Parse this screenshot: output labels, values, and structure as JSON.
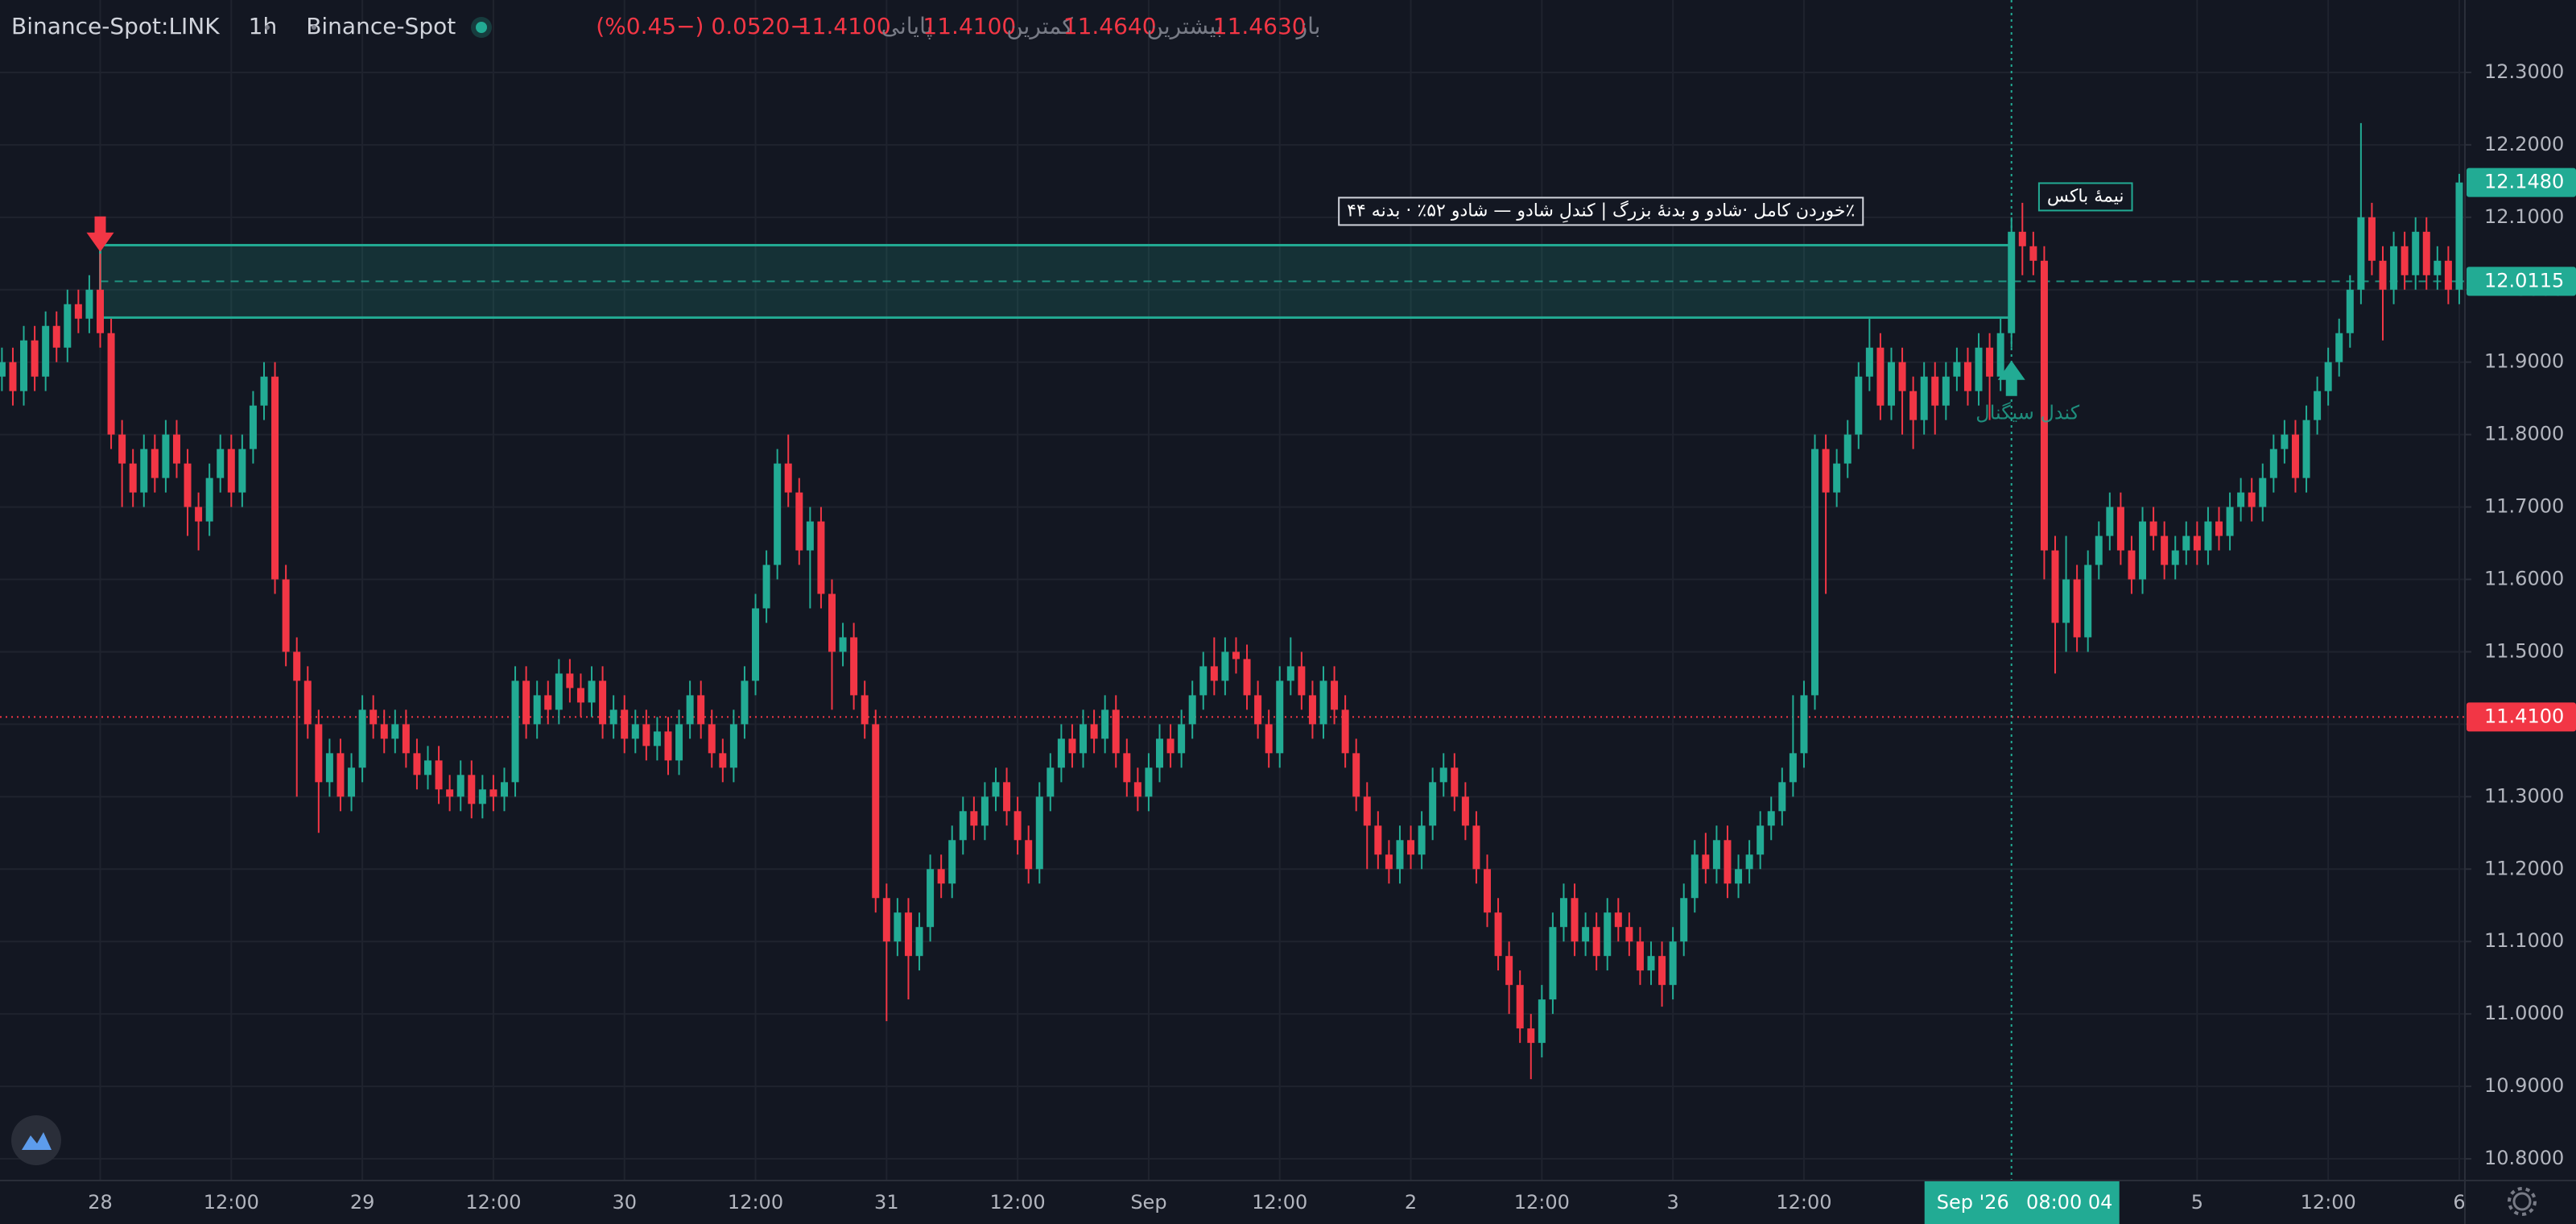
{
  "chart_data": {
    "type": "candlestick",
    "header": {
      "symbol": "Binance-Spot:LINK",
      "interval": "1h",
      "exchange": "Binance-Spot",
      "ohlc": [
        {
          "label": "باز",
          "value": "11.4630"
        },
        {
          "label": "بیشترین",
          "value": "11.4640"
        },
        {
          "label": "کمترین",
          "value": "11.4100"
        },
        {
          "label": "پایانی",
          "value": "11.4100"
        }
      ],
      "change": "−0.0520 (−0.45%)"
    },
    "up_color": "#22ab94",
    "down_color": "#f23645",
    "ylim": [
      10.77,
      12.4
    ],
    "yticks": [
      {
        "value": 12.3,
        "label": "12.3000"
      },
      {
        "value": 12.2,
        "label": "12.2000"
      },
      {
        "value": 12.1,
        "label": "12.1000"
      },
      {
        "value": 12.0,
        "label": "12.0000"
      },
      {
        "value": 11.9,
        "label": "11.9000"
      },
      {
        "value": 11.8,
        "label": "11.8000"
      },
      {
        "value": 11.7,
        "label": "11.7000"
      },
      {
        "value": 11.6,
        "label": "11.6000"
      },
      {
        "value": 11.5,
        "label": "11.5000"
      },
      {
        "value": 11.4,
        "label": "11.4000"
      },
      {
        "value": 11.3,
        "label": "11.3000"
      },
      {
        "value": 11.2,
        "label": "11.2000"
      },
      {
        "value": 11.1,
        "label": "11.1000"
      },
      {
        "value": 11.0,
        "label": "11.0000"
      },
      {
        "value": 10.9,
        "label": "10.9000"
      },
      {
        "value": 10.8,
        "label": "10.8000"
      }
    ],
    "grid": true,
    "categories": [
      null,
      null,
      null,
      null,
      null,
      null,
      null,
      null,
      null,
      "28",
      null,
      null,
      null,
      null,
      null,
      null,
      null,
      null,
      null,
      null,
      null,
      "12:00",
      null,
      null,
      null,
      null,
      null,
      null,
      null,
      null,
      null,
      null,
      null,
      "29",
      null,
      null,
      null,
      null,
      null,
      null,
      null,
      null,
      null,
      null,
      null,
      "12:00",
      null,
      null,
      null,
      null,
      null,
      null,
      null,
      null,
      null,
      null,
      null,
      "30",
      null,
      null,
      null,
      null,
      null,
      null,
      null,
      null,
      null,
      null,
      null,
      "12:00",
      null,
      null,
      null,
      null,
      null,
      null,
      null,
      null,
      null,
      null,
      null,
      "31",
      null,
      null,
      null,
      null,
      null,
      null,
      null,
      null,
      null,
      null,
      null,
      "12:00",
      null,
      null,
      null,
      null,
      null,
      null,
      null,
      null,
      null,
      null,
      null,
      "Sep",
      null,
      null,
      null,
      null,
      null,
      null,
      null,
      null,
      null,
      null,
      null,
      "12:00",
      null,
      null,
      null,
      null,
      null,
      null,
      null,
      null,
      null,
      null,
      null,
      "2",
      null,
      null,
      null,
      null,
      null,
      null,
      null,
      null,
      null,
      null,
      null,
      "12:00",
      null,
      null,
      null,
      null,
      null,
      null,
      null,
      null,
      null,
      null,
      null,
      "3",
      null,
      null,
      null,
      null,
      null,
      null,
      null,
      null,
      null,
      null,
      null,
      "12:00",
      null,
      null,
      null,
      null,
      null,
      null,
      null,
      null,
      null,
      null,
      null,
      null,
      null,
      null,
      null,
      null,
      null,
      null,
      null,
      null,
      null,
      null,
      null,
      null,
      null,
      null,
      null,
      null,
      null,
      null,
      null,
      null,
      null,
      null,
      null,
      "5",
      null,
      null,
      null,
      null,
      null,
      null,
      null,
      null,
      null,
      null,
      null,
      "12:00",
      null,
      null,
      null,
      null,
      null,
      null,
      null,
      null,
      null,
      null,
      null,
      "6"
    ],
    "open": [
      11.88,
      11.9,
      11.86,
      11.93,
      11.88,
      11.95,
      11.92,
      11.98,
      11.96,
      12.0,
      11.94,
      11.8,
      11.76,
      11.72,
      11.78,
      11.74,
      11.8,
      11.76,
      11.7,
      11.68,
      11.74,
      11.78,
      11.72,
      11.78,
      11.84,
      11.88,
      11.6,
      11.5,
      11.46,
      11.4,
      11.32,
      11.36,
      11.3,
      11.34,
      11.42,
      11.4,
      11.38,
      11.4,
      11.36,
      11.33,
      11.35,
      11.31,
      11.3,
      11.33,
      11.29,
      11.31,
      11.3,
      11.32,
      11.46,
      11.4,
      11.44,
      11.42,
      11.47,
      11.45,
      11.43,
      11.46,
      11.4,
      11.42,
      11.38,
      11.4,
      11.37,
      11.39,
      11.35,
      11.4,
      11.44,
      11.4,
      11.36,
      11.34,
      11.4,
      11.46,
      11.56,
      11.62,
      11.76,
      11.72,
      11.64,
      11.68,
      11.58,
      11.5,
      11.52,
      11.44,
      11.4,
      11.16,
      11.1,
      11.14,
      11.08,
      11.12,
      11.2,
      11.18,
      11.24,
      11.28,
      11.26,
      11.3,
      11.32,
      11.28,
      11.24,
      11.2,
      11.3,
      11.34,
      11.38,
      11.36,
      11.4,
      11.38,
      11.42,
      11.36,
      11.32,
      11.3,
      11.34,
      11.38,
      11.36,
      11.4,
      11.44,
      11.48,
      11.46,
      11.5,
      11.49,
      11.44,
      11.4,
      11.36,
      11.46,
      11.48,
      11.44,
      11.4,
      11.46,
      11.42,
      11.36,
      11.3,
      11.26,
      11.22,
      11.2,
      11.24,
      11.22,
      11.26,
      11.32,
      11.34,
      11.3,
      11.26,
      11.2,
      11.14,
      11.08,
      11.04,
      10.98,
      10.96,
      11.02,
      11.12,
      11.16,
      11.1,
      11.12,
      11.08,
      11.14,
      11.12,
      11.1,
      11.06,
      11.08,
      11.04,
      11.1,
      11.16,
      11.22,
      11.2,
      11.24,
      11.18,
      11.2,
      11.22,
      11.26,
      11.28,
      11.32,
      11.36,
      11.44,
      11.78,
      11.72,
      11.76,
      11.8,
      11.88,
      11.92,
      11.84,
      11.9,
      11.86,
      11.82,
      11.88,
      11.84,
      11.88,
      11.9,
      11.86,
      11.92,
      11.88,
      11.94,
      12.08,
      12.06,
      12.04,
      11.64,
      11.54,
      11.6,
      11.52,
      11.62,
      11.66,
      11.7,
      11.64,
      11.6,
      11.68,
      11.66,
      11.62,
      11.64,
      11.66,
      11.64,
      11.68,
      11.66,
      11.7,
      11.72,
      11.7,
      11.74,
      11.78,
      11.8,
      11.74,
      11.82,
      11.86,
      11.9,
      11.94,
      12.0,
      12.1,
      12.04,
      12.0,
      12.06,
      12.02,
      12.08,
      12.02,
      12.04,
      12.0
    ],
    "high": [
      11.92,
      11.92,
      11.95,
      11.95,
      11.97,
      11.97,
      12.0,
      12.0,
      12.02,
      12.05,
      11.96,
      11.82,
      11.78,
      11.8,
      11.8,
      11.82,
      11.82,
      11.78,
      11.72,
      11.76,
      11.8,
      11.8,
      11.8,
      11.86,
      11.9,
      11.9,
      11.62,
      11.52,
      11.48,
      11.42,
      11.38,
      11.38,
      11.36,
      11.44,
      11.44,
      11.42,
      11.42,
      11.42,
      11.38,
      11.37,
      11.37,
      11.33,
      11.35,
      11.35,
      11.33,
      11.33,
      11.34,
      11.48,
      11.48,
      11.46,
      11.46,
      11.49,
      11.49,
      11.47,
      11.48,
      11.48,
      11.44,
      11.44,
      11.42,
      11.42,
      11.41,
      11.41,
      11.42,
      11.46,
      11.46,
      11.42,
      11.38,
      11.42,
      11.48,
      11.58,
      11.64,
      11.78,
      11.8,
      11.74,
      11.7,
      11.7,
      11.6,
      11.54,
      11.54,
      11.46,
      11.42,
      11.18,
      11.16,
      11.16,
      11.14,
      11.22,
      11.22,
      11.26,
      11.3,
      11.3,
      11.32,
      11.34,
      11.34,
      11.3,
      11.26,
      11.32,
      11.36,
      11.4,
      11.4,
      11.42,
      11.42,
      11.44,
      11.44,
      11.38,
      11.34,
      11.36,
      11.4,
      11.4,
      11.42,
      11.46,
      11.5,
      11.52,
      11.52,
      11.52,
      11.51,
      11.46,
      11.42,
      11.48,
      11.52,
      11.5,
      11.46,
      11.48,
      11.48,
      11.44,
      11.38,
      11.32,
      11.28,
      11.24,
      11.26,
      11.26,
      11.28,
      11.34,
      11.36,
      11.36,
      11.32,
      11.28,
      11.22,
      11.16,
      11.1,
      11.06,
      11.0,
      11.04,
      11.14,
      11.18,
      11.18,
      11.14,
      11.14,
      11.16,
      11.16,
      11.14,
      11.12,
      11.1,
      11.1,
      11.12,
      11.18,
      11.24,
      11.25,
      11.26,
      11.26,
      11.22,
      11.24,
      11.28,
      11.3,
      11.34,
      11.44,
      11.46,
      11.8,
      11.8,
      11.78,
      11.82,
      11.9,
      11.96,
      11.94,
      11.92,
      11.92,
      11.88,
      11.9,
      11.9,
      11.9,
      11.92,
      11.92,
      11.94,
      11.94,
      11.96,
      12.1,
      12.12,
      12.08,
      12.06,
      11.66,
      11.66,
      11.62,
      11.64,
      11.68,
      11.72,
      11.72,
      11.66,
      11.7,
      11.7,
      11.68,
      11.66,
      11.68,
      11.68,
      11.7,
      11.7,
      11.72,
      11.74,
      11.74,
      11.76,
      11.8,
      11.82,
      11.82,
      11.84,
      11.88,
      11.92,
      11.96,
      12.02,
      12.23,
      12.12,
      12.06,
      12.08,
      12.08,
      12.1,
      12.1,
      12.06,
      12.06,
      12.16
    ],
    "low": [
      11.86,
      11.84,
      11.84,
      11.86,
      11.86,
      11.9,
      11.9,
      11.94,
      11.94,
      11.92,
      11.78,
      11.7,
      11.7,
      11.7,
      11.72,
      11.72,
      11.74,
      11.66,
      11.64,
      11.66,
      11.72,
      11.7,
      11.7,
      11.76,
      11.82,
      11.58,
      11.48,
      11.3,
      11.38,
      11.25,
      11.3,
      11.28,
      11.28,
      11.32,
      11.38,
      11.36,
      11.36,
      11.34,
      11.31,
      11.31,
      11.29,
      11.28,
      11.28,
      11.27,
      11.27,
      11.28,
      11.28,
      11.3,
      11.38,
      11.38,
      11.4,
      11.4,
      11.43,
      11.41,
      11.41,
      11.38,
      11.38,
      11.36,
      11.36,
      11.35,
      11.35,
      11.33,
      11.33,
      11.38,
      11.38,
      11.34,
      11.32,
      11.32,
      11.38,
      11.44,
      11.54,
      11.6,
      11.7,
      11.62,
      11.56,
      11.56,
      11.42,
      11.48,
      11.42,
      11.38,
      11.14,
      10.99,
      11.08,
      11.02,
      11.06,
      11.1,
      11.16,
      11.16,
      11.22,
      11.24,
      11.24,
      11.28,
      11.26,
      11.22,
      11.18,
      11.18,
      11.28,
      11.32,
      11.34,
      11.34,
      11.36,
      11.36,
      11.34,
      11.3,
      11.28,
      11.28,
      11.32,
      11.34,
      11.34,
      11.38,
      11.42,
      11.44,
      11.44,
      11.47,
      11.42,
      11.38,
      11.34,
      11.34,
      11.44,
      11.42,
      11.38,
      11.38,
      11.4,
      11.34,
      11.28,
      11.2,
      11.2,
      11.18,
      11.18,
      11.2,
      11.2,
      11.24,
      11.3,
      11.28,
      11.24,
      11.18,
      11.12,
      11.06,
      11.0,
      10.96,
      10.91,
      10.94,
      11.0,
      11.1,
      11.08,
      11.08,
      11.06,
      11.06,
      11.1,
      11.08,
      11.04,
      11.04,
      11.01,
      11.02,
      11.08,
      11.14,
      11.18,
      11.18,
      11.16,
      11.16,
      11.18,
      11.2,
      11.24,
      11.26,
      11.3,
      11.34,
      11.42,
      11.58,
      11.7,
      11.74,
      11.78,
      11.86,
      11.82,
      11.82,
      11.8,
      11.78,
      11.8,
      11.8,
      11.82,
      11.86,
      11.84,
      11.84,
      11.82,
      11.86,
      11.92,
      12.02,
      12.02,
      11.6,
      11.47,
      11.5,
      11.5,
      11.5,
      11.6,
      11.64,
      11.62,
      11.58,
      11.58,
      11.64,
      11.6,
      11.6,
      11.62,
      11.62,
      11.62,
      11.64,
      11.64,
      11.68,
      11.68,
      11.68,
      11.72,
      11.76,
      11.72,
      11.72,
      11.8,
      11.84,
      11.88,
      11.92,
      11.98,
      12.02,
      11.93,
      11.98,
      12.0,
      12.0,
      12.0,
      12.0,
      11.98,
      11.98
    ],
    "close": [
      11.9,
      11.86,
      11.93,
      11.88,
      11.95,
      11.92,
      11.98,
      11.96,
      12.0,
      11.94,
      11.8,
      11.76,
      11.72,
      11.78,
      11.74,
      11.8,
      11.76,
      11.7,
      11.68,
      11.74,
      11.78,
      11.72,
      11.78,
      11.84,
      11.88,
      11.6,
      11.5,
      11.46,
      11.4,
      11.32,
      11.36,
      11.3,
      11.34,
      11.42,
      11.4,
      11.38,
      11.4,
      11.36,
      11.33,
      11.35,
      11.31,
      11.3,
      11.33,
      11.29,
      11.31,
      11.3,
      11.32,
      11.46,
      11.4,
      11.44,
      11.42,
      11.47,
      11.45,
      11.43,
      11.46,
      11.4,
      11.42,
      11.38,
      11.4,
      11.37,
      11.39,
      11.35,
      11.4,
      11.44,
      11.4,
      11.36,
      11.34,
      11.4,
      11.46,
      11.56,
      11.62,
      11.76,
      11.72,
      11.64,
      11.68,
      11.58,
      11.5,
      11.52,
      11.44,
      11.4,
      11.16,
      11.1,
      11.14,
      11.08,
      11.12,
      11.2,
      11.18,
      11.24,
      11.28,
      11.26,
      11.3,
      11.32,
      11.28,
      11.24,
      11.2,
      11.3,
      11.34,
      11.38,
      11.36,
      11.4,
      11.38,
      11.42,
      11.36,
      11.32,
      11.3,
      11.34,
      11.38,
      11.36,
      11.4,
      11.44,
      11.48,
      11.46,
      11.5,
      11.49,
      11.44,
      11.4,
      11.36,
      11.46,
      11.48,
      11.44,
      11.4,
      11.46,
      11.42,
      11.36,
      11.3,
      11.26,
      11.22,
      11.2,
      11.24,
      11.22,
      11.26,
      11.32,
      11.34,
      11.3,
      11.26,
      11.2,
      11.14,
      11.08,
      11.04,
      10.98,
      10.96,
      11.02,
      11.12,
      11.16,
      11.1,
      11.12,
      11.08,
      11.14,
      11.12,
      11.1,
      11.06,
      11.08,
      11.04,
      11.1,
      11.16,
      11.22,
      11.2,
      11.24,
      11.18,
      11.2,
      11.22,
      11.26,
      11.28,
      11.32,
      11.36,
      11.44,
      11.78,
      11.72,
      11.76,
      11.8,
      11.88,
      11.92,
      11.84,
      11.9,
      11.86,
      11.82,
      11.88,
      11.84,
      11.88,
      11.9,
      11.86,
      11.92,
      11.88,
      11.94,
      12.08,
      12.06,
      12.04,
      11.64,
      11.54,
      11.6,
      11.52,
      11.62,
      11.66,
      11.7,
      11.64,
      11.6,
      11.68,
      11.66,
      11.62,
      11.64,
      11.66,
      11.64,
      11.68,
      11.66,
      11.7,
      11.72,
      11.7,
      11.74,
      11.78,
      11.8,
      11.74,
      11.82,
      11.86,
      11.9,
      11.94,
      12.0,
      12.1,
      12.04,
      12.0,
      12.06,
      12.02,
      12.08,
      12.02,
      12.04,
      12.0,
      12.148
    ],
    "zone": {
      "top": 12.0615,
      "bottom": 11.9615,
      "mid": {
        "value": 12.0115,
        "label": "12.0115"
      },
      "start": 9,
      "end": 184,
      "color": "#22ab94",
      "label": "٪خوردن کامل ·شادو و بدنهٔ بزرگ | کندلِ شادو — شادو ۵۲٪ · بدنه ۴۴",
      "mid_label": "نیمهٔ باکس"
    },
    "markers": [
      {
        "candle": 9,
        "direction": "down",
        "color": "#f23645"
      },
      {
        "candle": 184,
        "direction": "up",
        "color": "#22ab94",
        "label": "کندل سیگنال"
      }
    ],
    "price_lines": [
      {
        "value": 11.41,
        "label": "11.4100",
        "color": "#f23645",
        "style": "dotted"
      },
      {
        "value": 12.148,
        "label": "12.1480",
        "color": "#22ab94",
        "style": "none"
      }
    ],
    "crosshair": {
      "candle": 184,
      "date": "Sep '26",
      "time": "08:00 04",
      "color": "#22ab94"
    }
  }
}
